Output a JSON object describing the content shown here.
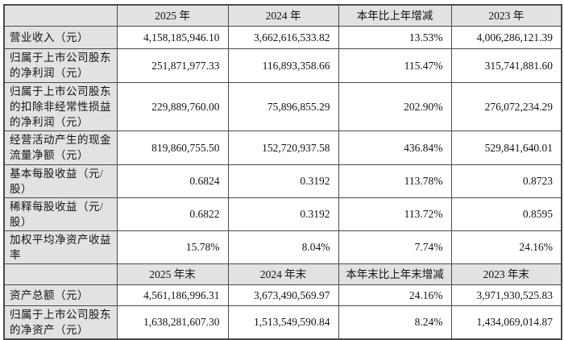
{
  "colors": {
    "page_background": "#ffffff",
    "header_and_label_background": "#e2e2e2",
    "border": "#4a4a4a",
    "text": "#141414"
  },
  "sections": [
    {
      "headers": {
        "c0": "",
        "c1": "2025 年",
        "c2": "2024 年",
        "c3": "本年比上年增减",
        "c4": "2023 年"
      },
      "rows": [
        {
          "label": "营业收入（元）",
          "v1": "4,158,185,946.10",
          "v2": "3,662,616,533.82",
          "v3": "13.53%",
          "v4": "4,006,286,121.39"
        },
        {
          "label": "归属于上市公司股东的净利润（元）",
          "v1": "251,871,977.33",
          "v2": "116,893,358.66",
          "v3": "115.47%",
          "v4": "315,741,881.60"
        },
        {
          "label": "归属于上市公司股东的扣除非经常性损益的净利润（元）",
          "v1": "229,889,760.00",
          "v2": "75,896,855.29",
          "v3": "202.90%",
          "v4": "276,072,234.29"
        },
        {
          "label": "经营活动产生的现金流量净额（元）",
          "v1": "819,860,755.50",
          "v2": "152,720,937.58",
          "v3": "436.84%",
          "v4": "529,841,640.01"
        },
        {
          "label": "基本每股收益（元/股）",
          "v1": "0.6824",
          "v2": "0.3192",
          "v3": "113.78%",
          "v4": "0.8723"
        },
        {
          "label": "稀释每股收益（元/股）",
          "v1": "0.6822",
          "v2": "0.3192",
          "v3": "113.72%",
          "v4": "0.8595"
        },
        {
          "label": "加权平均净资产收益率",
          "v1": "15.78%",
          "v2": "8.04%",
          "v3": "7.74%",
          "v4": "24.16%"
        }
      ]
    },
    {
      "headers": {
        "c0": "",
        "c1": "2025 年末",
        "c2": "2024 年末",
        "c3": "本年末比上年末增减",
        "c4": "2023 年末"
      },
      "rows": [
        {
          "label": "资产总额（元）",
          "v1": "4,561,186,996.31",
          "v2": "3,673,490,569.97",
          "v3": "24.16%",
          "v4": "3,971,930,525.83"
        },
        {
          "label": "归属于上市公司股东的净资产（元）",
          "v1": "1,638,281,607.30",
          "v2": "1,513,549,590.84",
          "v3": "8.24%",
          "v4": "1,434,069,014.87"
        }
      ]
    }
  ]
}
